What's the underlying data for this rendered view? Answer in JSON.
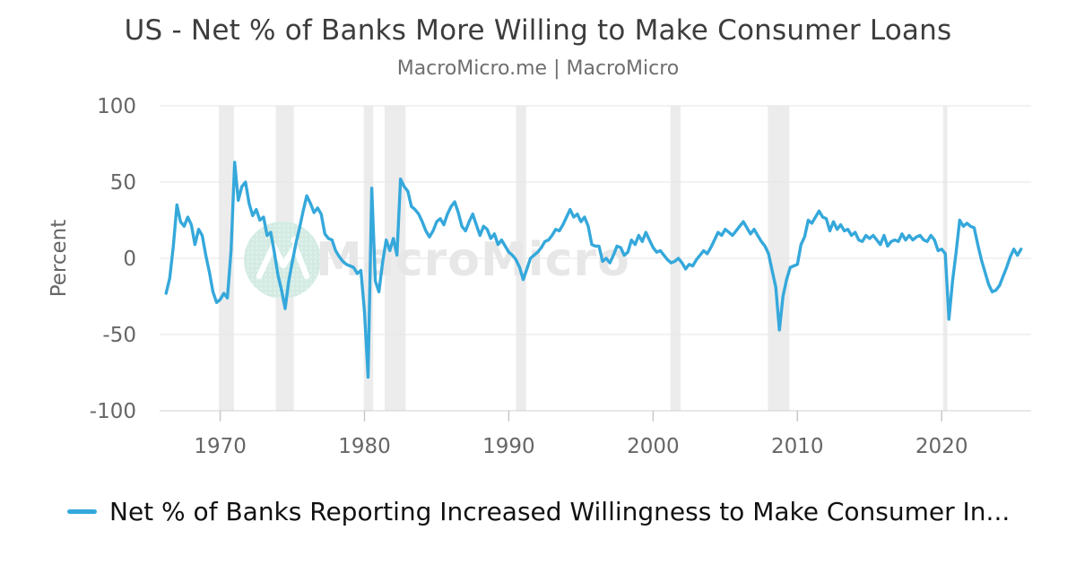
{
  "header": {
    "title": "US - Net % of Banks More Willing to Make Consumer Loans",
    "subtitle": "MacroMicro.me | MacroMicro"
  },
  "legend": {
    "label": "Net % of Banks Reporting Increased Willingness to Make Consumer In...",
    "series_color": "#35a8db"
  },
  "watermark": {
    "text": "MacroMicro",
    "circle_color": "#d3ebe3",
    "dot_color": "#e6f5ef",
    "glyph_color": "#ffffff",
    "text_color": "#e7e7e7"
  },
  "chart_data": {
    "type": "line",
    "title": "US - Net % of Banks More Willing to Make Consumer Loans",
    "xlabel": "",
    "ylabel": "Percent",
    "ylim": [
      -100,
      100
    ],
    "y_ticks": [
      100,
      50,
      0,
      -50,
      -100
    ],
    "x_ticks": [
      1970,
      1980,
      1990,
      2000,
      2010,
      2020
    ],
    "x_axis_range": [
      1965.8,
      2026.2
    ],
    "grid": "horizontal-only",
    "legend_position": "bottom-left",
    "line_color": "#35a8db",
    "band_color": "#ececec",
    "grid_color": "#e6e6e6",
    "axis_line_color": "#d0d0d0",
    "tick_color": "#c9c9c9",
    "axis_text_color": "#666666",
    "recession_bands": [
      [
        1969.9,
        1970.95
      ],
      [
        1973.85,
        1975.1
      ],
      [
        1979.95,
        1980.6
      ],
      [
        1981.4,
        1982.85
      ],
      [
        1990.5,
        1991.2
      ],
      [
        2001.2,
        2001.9
      ],
      [
        2007.95,
        2009.45
      ],
      [
        2020.1,
        2020.4
      ]
    ],
    "series_name": "Net % of Banks Reporting Increased Willingness to Make Consumer In...",
    "x_start": 1966.25,
    "x_step": 0.25,
    "values": [
      -23,
      -13,
      8,
      35,
      24,
      21,
      27,
      22,
      9,
      19,
      15,
      2,
      -9,
      -22,
      -29,
      -27,
      -23,
      -26,
      5,
      63,
      38,
      47,
      50,
      36,
      28,
      32,
      25,
      27,
      15,
      17,
      4,
      -11,
      -21,
      -33,
      -15,
      -2,
      10,
      20,
      31,
      41,
      36,
      30,
      33,
      29,
      16,
      13,
      12,
      5,
      1,
      -2,
      -4,
      -5,
      -6,
      -10,
      -8,
      -35,
      -78,
      46,
      -15,
      -22,
      -3,
      12,
      5,
      13,
      2,
      52,
      47,
      44,
      34,
      32,
      29,
      24,
      18,
      14,
      18,
      24,
      26,
      22,
      29,
      34,
      37,
      30,
      21,
      18,
      24,
      29,
      22,
      15,
      21,
      19,
      13,
      16,
      9,
      12,
      8,
      4,
      2,
      -1,
      -6,
      -14,
      -7,
      0,
      2,
      4,
      7,
      11,
      12,
      15,
      19,
      18,
      22,
      27,
      32,
      27,
      29,
      24,
      27,
      21,
      9,
      8,
      8,
      -2,
      0,
      -3,
      2,
      8,
      7,
      2,
      4,
      12,
      9,
      15,
      11,
      17,
      12,
      7,
      4,
      5,
      2,
      -1,
      -3,
      -2,
      0,
      -3,
      -7,
      -4,
      -5,
      -1,
      2,
      5,
      3,
      7,
      12,
      17,
      15,
      19,
      17,
      15,
      18,
      21,
      24,
      20,
      16,
      19,
      15,
      11,
      8,
      3,
      -8,
      -19,
      -47,
      -25,
      -14,
      -6,
      -5,
      -4,
      9,
      14,
      25,
      23,
      27,
      31,
      27,
      26,
      18,
      24,
      19,
      22,
      18,
      19,
      15,
      17,
      12,
      11,
      15,
      13,
      15,
      12,
      9,
      15,
      8,
      11,
      12,
      11,
      16,
      12,
      15,
      12,
      14,
      15,
      12,
      11,
      15,
      12,
      5,
      6,
      3,
      -40,
      -15,
      4,
      25,
      21,
      23,
      21,
      20,
      9,
      -1,
      -9,
      -17,
      -22,
      -21,
      -18,
      -12,
      -6,
      1,
      6,
      2,
      6
    ]
  }
}
